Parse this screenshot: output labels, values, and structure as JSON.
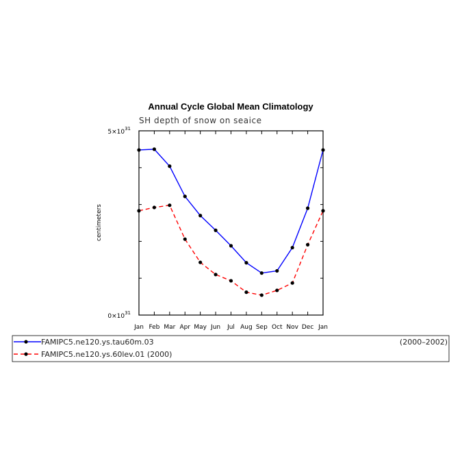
{
  "chart_data": {
    "type": "line",
    "title": "Annual Cycle Global Mean Climatology",
    "subtitle": "SH depth of snow on seaice",
    "ylabel": "centimeters",
    "categories": [
      "Jan",
      "Feb",
      "Mar",
      "Apr",
      "May",
      "Jun",
      "Jul",
      "Aug",
      "Sep",
      "Oct",
      "Nov",
      "Dec",
      "Jan"
    ],
    "ylim": [
      0,
      5
    ],
    "y_ticks": [
      {
        "value": 0,
        "label": "0×10",
        "exp": "31"
      },
      {
        "value": 5,
        "label": "5×10",
        "exp": "31"
      }
    ],
    "y_minor_ticks": [
      1,
      2,
      3,
      4
    ],
    "grid": false,
    "legend_position": "bottom",
    "series": [
      {
        "name": "FAMIPC5.ne120.ys.tau60m.03",
        "period": "(2000–2002)",
        "color": "#0000ff",
        "dash": "solid",
        "values": [
          4.48,
          4.5,
          4.04,
          3.22,
          2.7,
          2.3,
          1.88,
          1.42,
          1.14,
          1.2,
          1.83,
          2.9,
          4.48
        ]
      },
      {
        "name": "FAMIPC5.ne120.ys.60lev.01 (2000)",
        "period": "",
        "color": "#ff0000",
        "dash": "dashed",
        "values": [
          2.83,
          2.92,
          2.98,
          2.06,
          1.43,
          1.1,
          0.93,
          0.62,
          0.54,
          0.67,
          0.87,
          1.91,
          2.83
        ]
      }
    ]
  }
}
